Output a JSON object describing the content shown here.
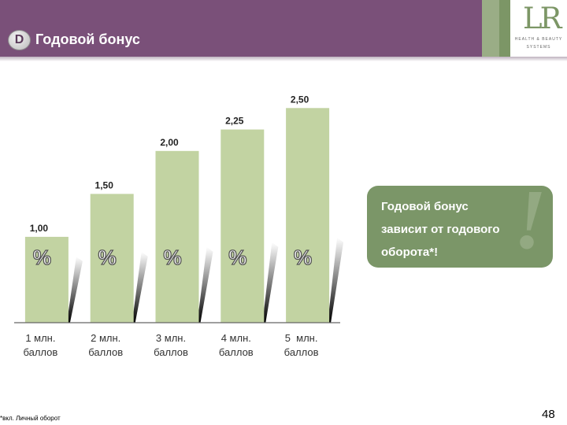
{
  "header": {
    "badge": "D",
    "title": "Годовой бонус"
  },
  "logo": {
    "mark": "LR",
    "line1": "HEALTH & BEAUTY",
    "line2": "SYSTEMS"
  },
  "chart_data": {
    "type": "bar",
    "categories": [
      "1 млн. баллов",
      "2 млн. баллов",
      "3 млн. баллов",
      "4 млн. баллов",
      "5  млн. баллов"
    ],
    "category_lines": [
      [
        "1 млн.",
        "баллов"
      ],
      [
        "2 млн.",
        "баллов"
      ],
      [
        "3 млн.",
        "баллов"
      ],
      [
        "4 млн.",
        "баллов"
      ],
      [
        "5  млн.",
        "баллов"
      ]
    ],
    "values": [
      1.0,
      1.5,
      2.0,
      2.25,
      2.5
    ],
    "value_labels": [
      "1,00",
      "1,50",
      "2,00",
      "2,25",
      "2,50"
    ],
    "bar_symbol": "%",
    "ylim": [
      0,
      2.75
    ],
    "colors": {
      "bar": "#c2d3a2"
    }
  },
  "callout": {
    "text_lines": [
      "Годовой бонус",
      "зависит от годового",
      "оборота*!"
    ],
    "mark": "!"
  },
  "footnote": "*вкл. Личный оборот",
  "page_number": "48",
  "colors": {
    "header": "#7a5079",
    "accent_green": "#7b9668"
  }
}
